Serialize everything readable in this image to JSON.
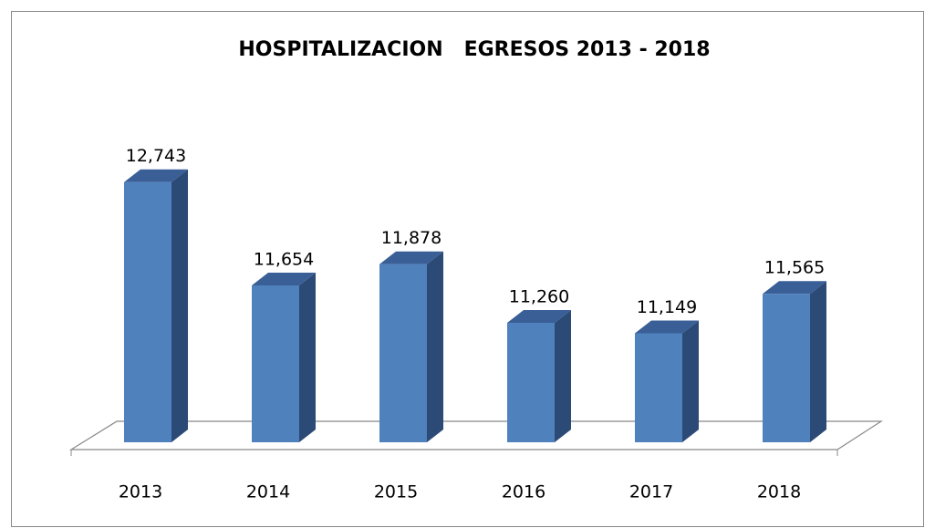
{
  "chart_data": {
    "type": "bar3d",
    "title": "HOSPITALIZACION   EGRESOS 2013 - 2018",
    "categories": [
      "2013",
      "2014",
      "2015",
      "2016",
      "2017",
      "2018"
    ],
    "values": [
      12743,
      11654,
      11878,
      11260,
      11149,
      11565
    ],
    "value_labels": [
      "12,743",
      "11,654",
      "11,878",
      "11,260",
      "11,149",
      "11,565"
    ],
    "color": "#4f81bd",
    "ylim": [
      10000,
      13000
    ]
  }
}
